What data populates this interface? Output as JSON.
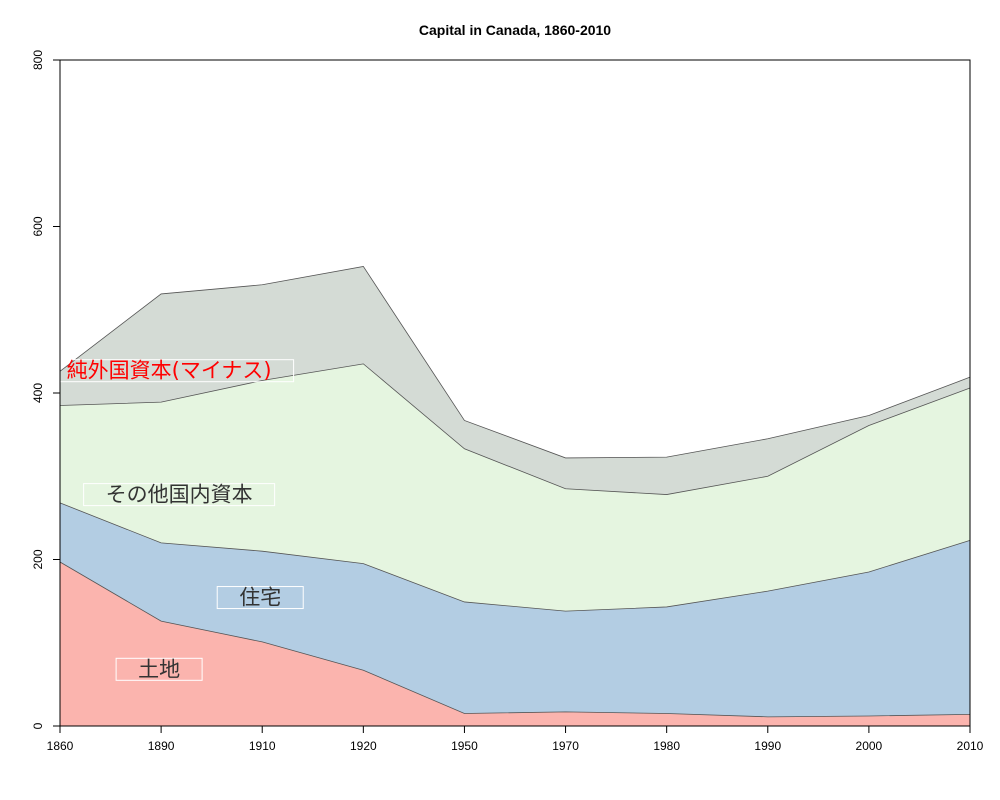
{
  "chart_data": {
    "type": "area",
    "stacked": true,
    "title": "Capital in Canada, 1860-2010",
    "xlabel": "",
    "ylabel": "",
    "x": [
      1860,
      1890,
      1910,
      1920,
      1950,
      1970,
      1980,
      1990,
      2000,
      2010
    ],
    "xticks": [
      "1860",
      "1890",
      "1910",
      "1920",
      "1950",
      "1970",
      "1980",
      "1990",
      "2000",
      "2010"
    ],
    "ylim": [
      0,
      800
    ],
    "yticks": [
      "0",
      "200",
      "400",
      "600",
      "800"
    ],
    "grid": false,
    "series": [
      {
        "name": "土地",
        "color": "#fbb4ae",
        "label_color": "#333333",
        "values": [
          197,
          126,
          101,
          67,
          15,
          17,
          15,
          11,
          12,
          14
        ]
      },
      {
        "name": "住宅",
        "color": "#b3cde3",
        "label_color": "#333333",
        "values": [
          71,
          94,
          109,
          128,
          134,
          121,
          128,
          151,
          173,
          209
        ]
      },
      {
        "name": "その他国内資本",
        "color": "#e5f5e0",
        "label_color": "#333333",
        "values": [
          117,
          169,
          205,
          240,
          184,
          147,
          135,
          138,
          176,
          183
        ]
      },
      {
        "name": "純外国資本(マイナス)",
        "color": "#d4dbd5",
        "label_color": "#ff0000",
        "values": [
          41,
          130,
          115,
          117,
          34,
          37,
          45,
          45,
          12,
          13
        ]
      }
    ]
  }
}
